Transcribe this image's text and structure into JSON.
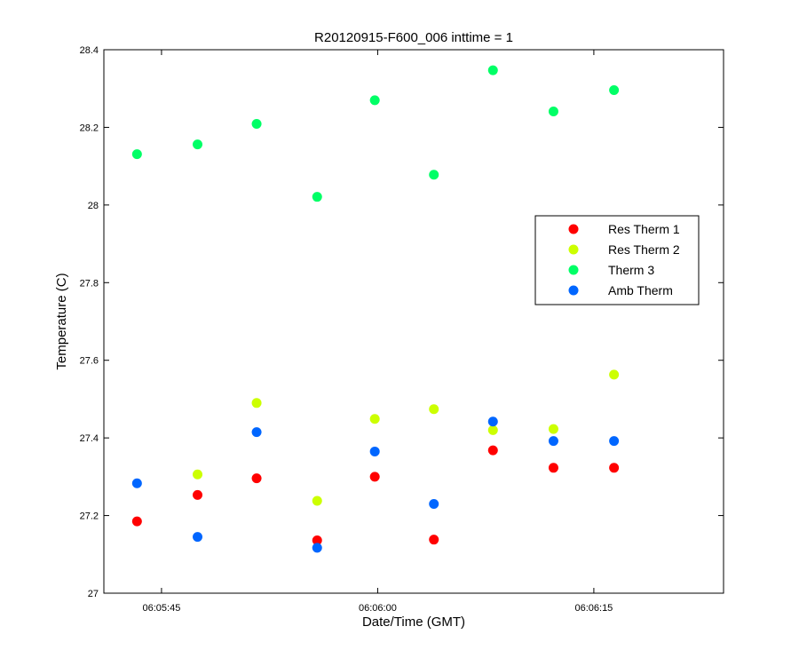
{
  "chart_data": {
    "type": "scatter",
    "title": "R20120915-F600_006 inttime = 1",
    "xlabel": "Date/Time (GMT)",
    "ylabel": "Temperature (C)",
    "xlim": [
      "06:05:41",
      "06:06:24"
    ],
    "ylim": [
      27,
      28.4
    ],
    "x_ticks": [
      "06:05:45",
      "06:06:00",
      "06:06:15"
    ],
    "y_ticks": [
      "27",
      "27.2",
      "27.4",
      "27.6",
      "27.8",
      "28",
      "28.2",
      "28.4"
    ],
    "grid": false,
    "legend_position": "right, upper-middle",
    "x": [
      "06:05:43.3",
      "06:05:47.5",
      "06:05:51.6",
      "06:05:55.8",
      "06:05:59.8",
      "06:06:03.9",
      "06:06:08.0",
      "06:06:12.2",
      "06:06:16.4"
    ],
    "series": [
      {
        "name": "Res Therm 1",
        "color": "#ff0000",
        "values": [
          27.185,
          27.253,
          27.296,
          27.136,
          27.3,
          27.138,
          27.368,
          27.323,
          27.323
        ]
      },
      {
        "name": "Res Therm 2",
        "color": "#ccff00",
        "values": [
          null,
          27.306,
          27.49,
          27.238,
          27.449,
          27.474,
          27.42,
          27.423,
          27.563
        ]
      },
      {
        "name": "Therm 3",
        "color": "#00ff66",
        "values": [
          28.131,
          28.156,
          28.209,
          28.021,
          28.27,
          28.078,
          28.347,
          28.241,
          28.296
        ]
      },
      {
        "name": "Amb Therm",
        "color": "#0066ff",
        "values": [
          27.283,
          27.145,
          27.415,
          27.117,
          27.365,
          27.23,
          27.442,
          27.392,
          27.392
        ]
      }
    ]
  }
}
